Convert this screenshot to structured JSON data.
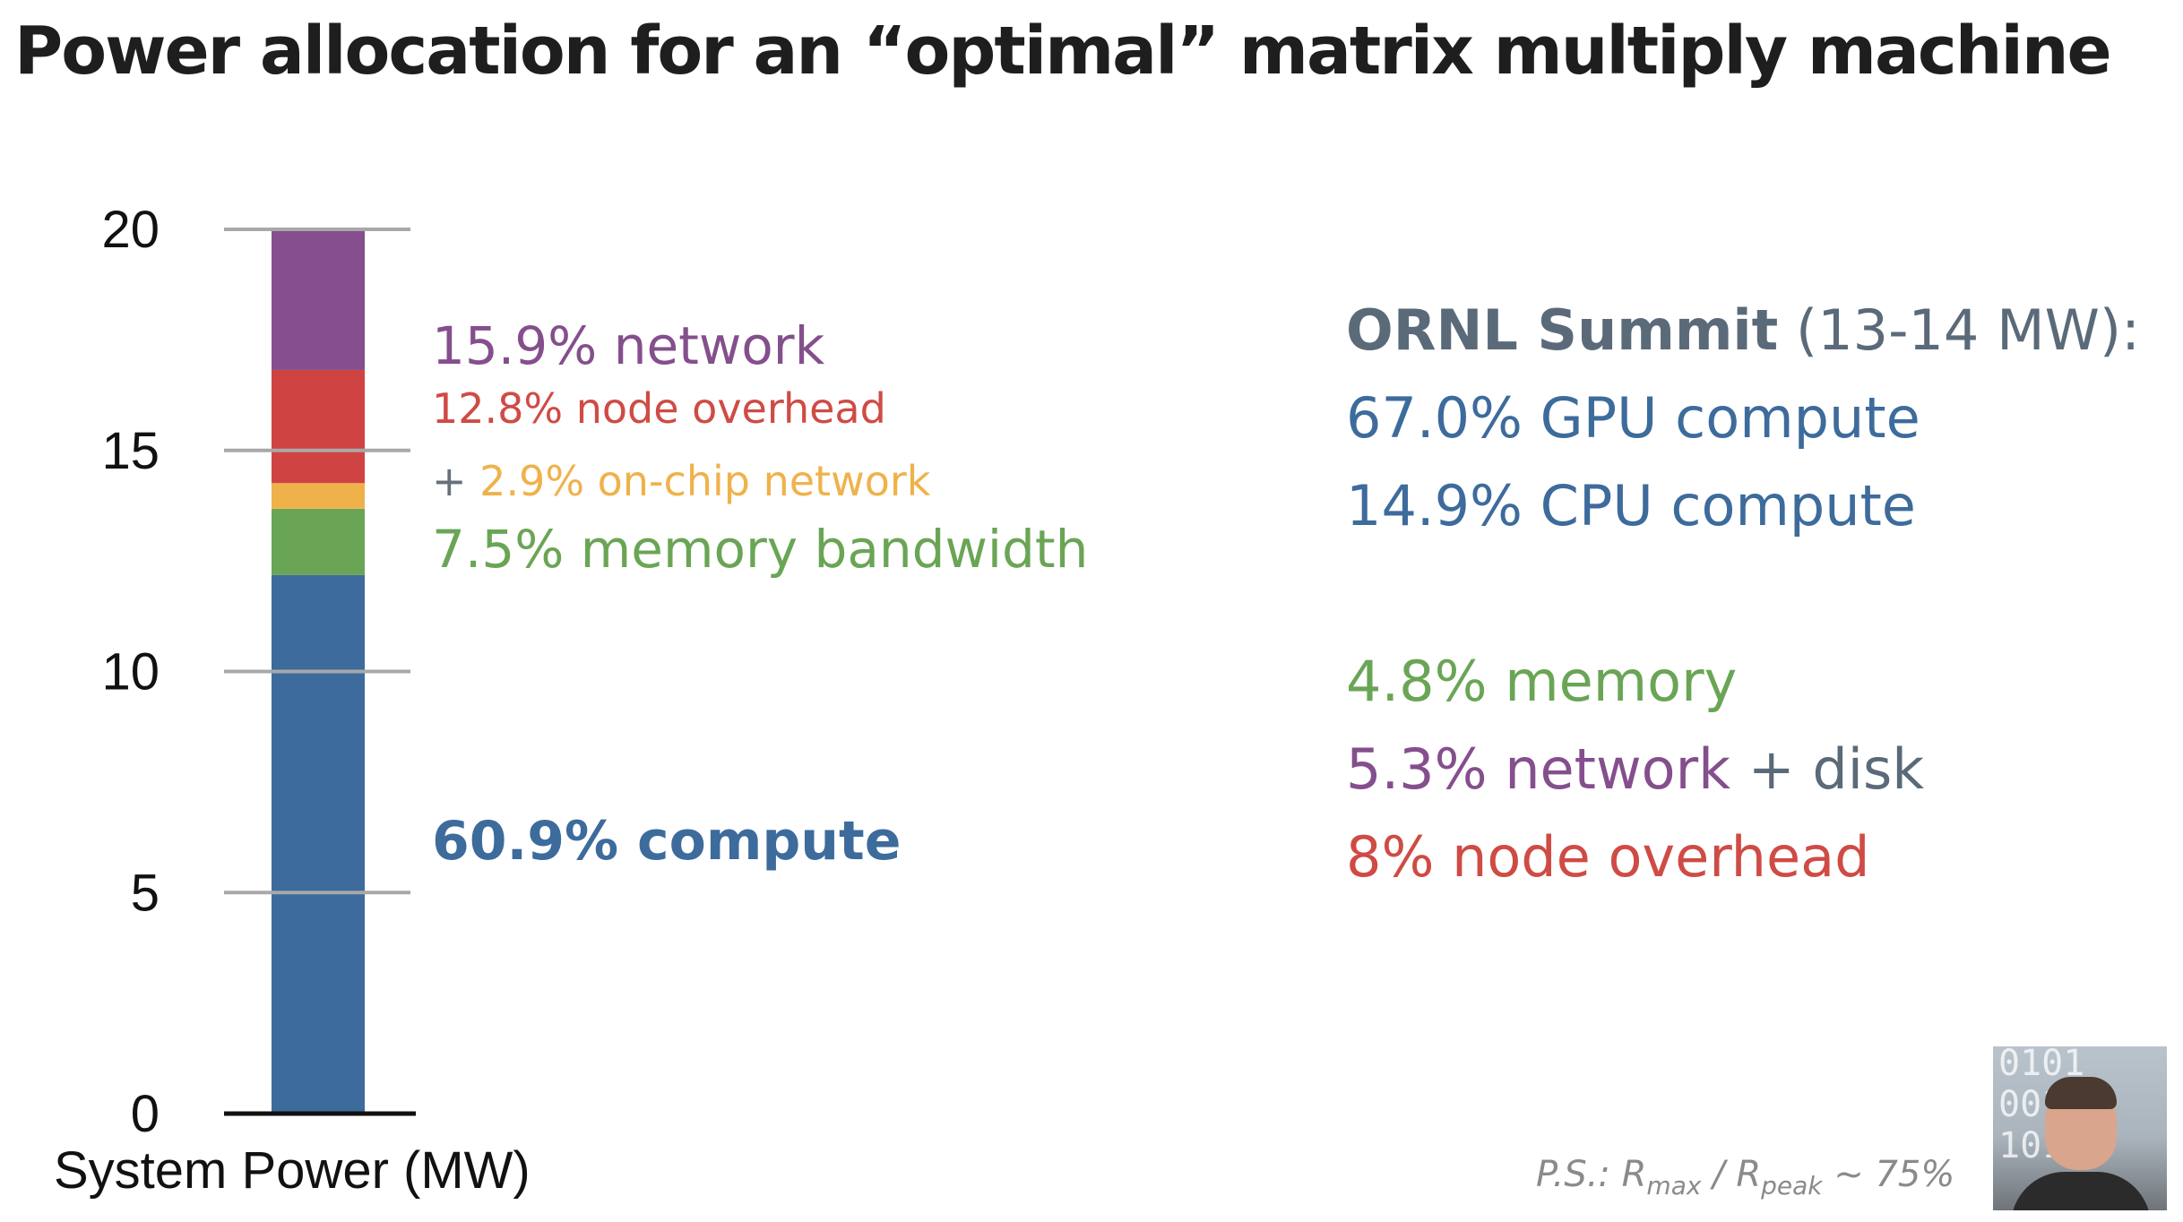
{
  "title": "Power allocation for an “optimal” matrix multiply machine",
  "chart_data": {
    "type": "bar",
    "stacked": true,
    "categories": [
      ""
    ],
    "xlabel": "System Power (MW)",
    "ylabel": "",
    "ylim": [
      0,
      20
    ],
    "yticks": [
      0,
      5,
      10,
      15,
      20
    ],
    "grid": false,
    "series": [
      {
        "name": "compute",
        "values": [
          12.18
        ],
        "color": "#3d6b9c"
      },
      {
        "name": "memory bandwidth",
        "values": [
          1.5
        ],
        "color": "#6aa555"
      },
      {
        "name": "on-chip network",
        "values": [
          0.58
        ],
        "color": "#efb24b"
      },
      {
        "name": "node overhead",
        "values": [
          2.56
        ],
        "color": "#d04343"
      },
      {
        "name": "network",
        "values": [
          3.18
        ],
        "color": "#844f8c"
      }
    ]
  },
  "bar_annotations": [
    {
      "id": "network",
      "anchor": 17.3,
      "parts": [
        {
          "text": "15.9% network",
          "color": "#844f8c",
          "bold": false
        }
      ],
      "size": 58
    },
    {
      "id": "node-overhead",
      "anchor": 15.9,
      "parts": [
        {
          "text": "12.8% node overhead",
          "color": "#cf4b45",
          "bold": false
        }
      ],
      "size": 46
    },
    {
      "id": "on-chip-network",
      "anchor": 14.25,
      "parts": [
        {
          "text": "+ ",
          "color": "#66707a",
          "bold": false
        },
        {
          "text": "2.9% on-chip network",
          "color": "#efb24b",
          "bold": false
        }
      ],
      "size": 46
    },
    {
      "id": "memory-bandwidth",
      "anchor": 12.7,
      "parts": [
        {
          "text": "7.5% memory bandwidth",
          "color": "#6aa555",
          "bold": false
        }
      ],
      "size": 58
    },
    {
      "id": "compute",
      "anchor": 6.1,
      "parts": [
        {
          "text": "60.9% compute",
          "color": "#3d6b9c",
          "bold": true
        }
      ],
      "size": 60
    }
  ],
  "summit": {
    "lines": [
      {
        "id": "header",
        "top": 372,
        "parts": [
          {
            "text": "ORNL Summit",
            "color": "#5b6a79",
            "bold": true
          },
          {
            "text": " (13-14 MW):",
            "color": "#5b6a79",
            "bold": false
          }
        ]
      },
      {
        "id": "gpu",
        "top": 470,
        "parts": [
          {
            "text": "67.0% GPU compute",
            "color": "#3d6b9c",
            "bold": false
          }
        ]
      },
      {
        "id": "cpu",
        "top": 568,
        "parts": [
          {
            "text": "14.9% CPU compute",
            "color": "#3d6b9c",
            "bold": false
          }
        ]
      },
      {
        "id": "memory",
        "top": 764,
        "parts": [
          {
            "text": "4.8% memory",
            "color": "#6aa555",
            "bold": false
          }
        ]
      },
      {
        "id": "network-disk",
        "top": 862,
        "parts": [
          {
            "text": "5.3% network",
            "color": "#844f8c",
            "bold": false
          },
          {
            "text": " + disk",
            "color": "#5b6a79",
            "bold": false
          }
        ]
      },
      {
        "id": "node-overhead",
        "top": 960,
        "parts": [
          {
            "text": "8% node overhead",
            "color": "#cf4b45",
            "bold": false
          }
        ]
      }
    ]
  },
  "footnote": {
    "prefix": "P.S.: R",
    "sub1": "max",
    "mid": " / R",
    "sub2": "peak",
    "suffix": " ~ 75%"
  },
  "webcam": {
    "digits": [
      "0101",
      "0011",
      "1010"
    ]
  }
}
